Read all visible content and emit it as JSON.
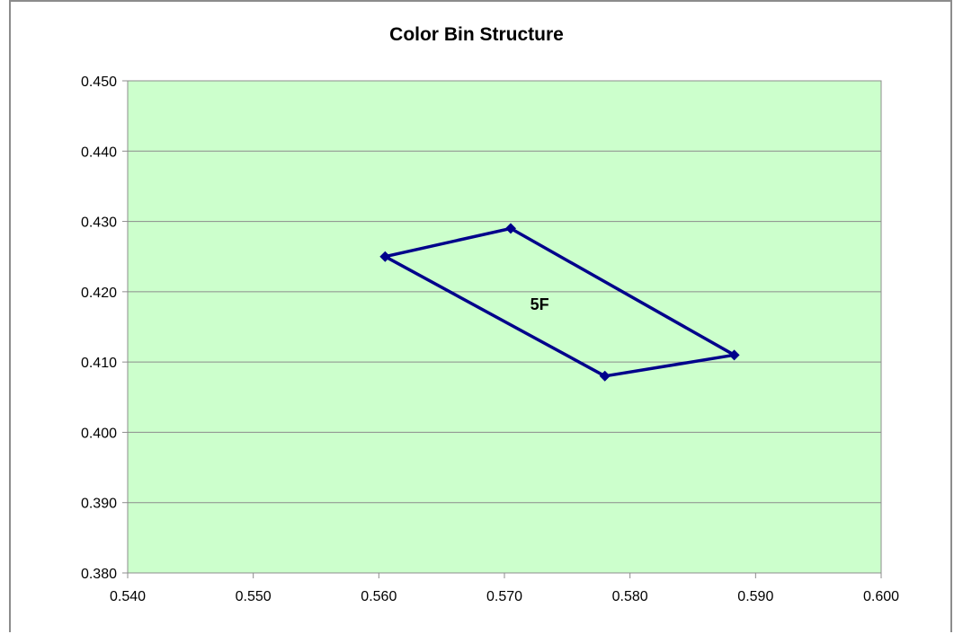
{
  "chart_data": {
    "type": "scatter",
    "title": "Color Bin Structure",
    "xlabel": "",
    "ylabel": "",
    "xlim": [
      0.54,
      0.6
    ],
    "ylim": [
      0.38,
      0.45
    ],
    "x_ticks": [
      "0.540",
      "0.550",
      "0.560",
      "0.570",
      "0.580",
      "0.590",
      "0.600"
    ],
    "y_ticks": [
      "0.380",
      "0.390",
      "0.400",
      "0.410",
      "0.420",
      "0.430",
      "0.440",
      "0.450"
    ],
    "grid": "horizontal",
    "plot_background": "#ccffcc",
    "series": [
      {
        "color": "#00008b",
        "marker": "diamond",
        "closed": true,
        "points": [
          [
            0.5605,
            0.425
          ],
          [
            0.5705,
            0.429
          ],
          [
            0.5883,
            0.411
          ],
          [
            0.578,
            0.408
          ],
          [
            0.5605,
            0.425
          ]
        ]
      }
    ],
    "annotations": [
      {
        "text": "5F",
        "x": 0.5728,
        "y": 0.4182
      }
    ]
  }
}
